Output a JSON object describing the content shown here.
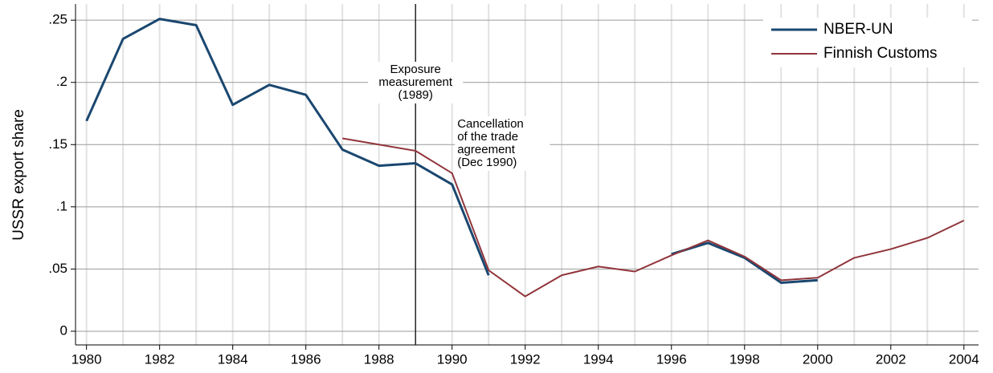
{
  "chart_data": {
    "type": "line",
    "ylabel": "USSR export share",
    "x": [
      1980,
      1981,
      1982,
      1983,
      1984,
      1985,
      1986,
      1987,
      1988,
      1989,
      1990,
      1991,
      1992,
      1993,
      1994,
      1995,
      1996,
      1997,
      1998,
      1999,
      2000,
      2001,
      2002,
      2003,
      2004
    ],
    "series": [
      {
        "name": "NBER-UN",
        "color": "#1a476f",
        "width": 3,
        "values": [
          0.169,
          0.235,
          0.251,
          0.246,
          0.182,
          0.198,
          0.19,
          0.146,
          0.133,
          0.135,
          0.118,
          0.045,
          null,
          null,
          null,
          null,
          0.062,
          0.071,
          0.059,
          0.039,
          0.041,
          null,
          null,
          null,
          null
        ]
      },
      {
        "name": "Finnish Customs",
        "color": "#90353b",
        "width": 2,
        "values": [
          null,
          null,
          null,
          null,
          null,
          null,
          null,
          0.155,
          0.15,
          0.145,
          0.127,
          0.049,
          0.028,
          0.045,
          0.052,
          0.048,
          0.061,
          0.073,
          0.06,
          0.041,
          0.043,
          0.059,
          0.066,
          0.075,
          0.089
        ]
      }
    ],
    "xlim": [
      1979.7,
      2004.4
    ],
    "ylim": [
      -0.011,
      0.263
    ],
    "xticks": [
      1980,
      1982,
      1984,
      1986,
      1988,
      1990,
      1992,
      1994,
      1996,
      1998,
      2000,
      2002,
      2004
    ],
    "yticks": [
      0,
      {
        "value": 0.05,
        "label": ".05"
      },
      {
        "value": 0.1,
        "label": ".1"
      },
      {
        "value": 0.15,
        "label": ".15"
      },
      {
        "value": 0.2,
        "label": ".2"
      },
      {
        "value": 0.25,
        "label": ".25"
      }
    ],
    "vline": 1989,
    "annotations": [
      {
        "lines": [
          "Exposure",
          "measurement",
          "(1989)"
        ]
      },
      {
        "lines": [
          "Cancellation",
          "of the trade",
          "agreement",
          "(Dec 1990)"
        ]
      }
    ],
    "legend": "top-right",
    "grid": true
  }
}
